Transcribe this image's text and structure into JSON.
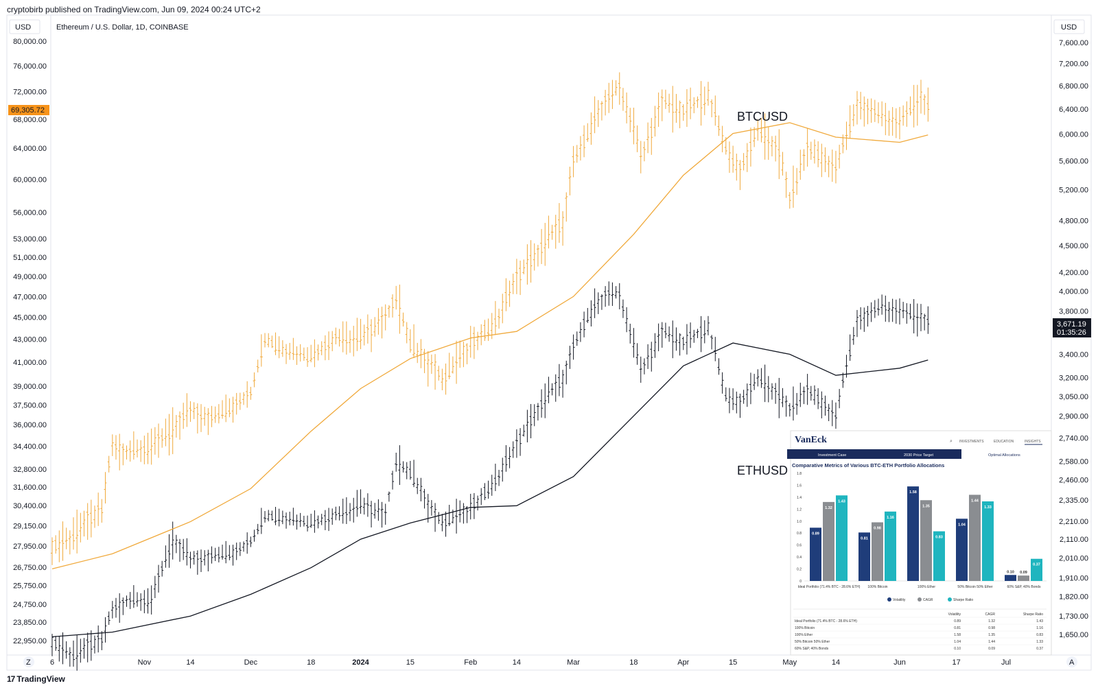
{
  "header": {
    "published": "cryptobirb published on TradingView.com, Jun 09, 2024 00:24 UTC+2"
  },
  "footer": {
    "logo_mark": "17",
    "logo_text": "TradingView"
  },
  "colors": {
    "btc": "#F0A93B",
    "eth": "#131722",
    "price_tag_btc": "#F7931A",
    "price_tag_eth": "#131722"
  },
  "chart_data": {
    "type": "line",
    "title": "Ethereum / U.S. Dollar, 1D, COINBASE",
    "currency_left": "USD",
    "currency_right": "USD",
    "left_axis": {
      "scale": "log",
      "ticks": [
        "80,000.00",
        "76,000.00",
        "72,000.00",
        "68,000.00",
        "64,000.00",
        "60,000.00",
        "56,000.00",
        "53,000.00",
        "51,000.00",
        "49,000.00",
        "47,000.00",
        "45,000.00",
        "43,000.00",
        "41,000.00",
        "39,000.00",
        "37,500.00",
        "36,000.00",
        "34,400.00",
        "32,800.00",
        "31,600.00",
        "30,400.00",
        "29,150.00",
        "27,950.00",
        "26,750.00",
        "25,750.00",
        "24,750.00",
        "23,850.00",
        "22,950.00"
      ],
      "tick_values": [
        80000,
        76000,
        72000,
        68000,
        64000,
        60000,
        56000,
        53000,
        51000,
        49000,
        47000,
        45000,
        43000,
        41000,
        39000,
        37500,
        36000,
        34400,
        32800,
        31600,
        30400,
        29150,
        27950,
        26750,
        25750,
        24750,
        23850,
        22950
      ]
    },
    "right_axis": {
      "scale": "log",
      "ticks": [
        "7,600.00",
        "7,200.00",
        "6,800.00",
        "6,400.00",
        "6,000.00",
        "5,600.00",
        "5,200.00",
        "4,800.00",
        "4,500.00",
        "4,200.00",
        "4,000.00",
        "3,800.00",
        "3,400.00",
        "3,200.00",
        "3,050.00",
        "2,900.00",
        "2,740.00",
        "2,580.00",
        "2,460.00",
        "2,335.00",
        "2,210.00",
        "2,110.00",
        "2,010.00",
        "1,910.00",
        "1,820.00",
        "1,730.00",
        "1,650.00"
      ],
      "tick_values": [
        7600,
        7200,
        6800,
        6400,
        6000,
        5600,
        5200,
        4800,
        4500,
        4200,
        4000,
        3800,
        3400,
        3200,
        3050,
        2900,
        2740,
        2580,
        2460,
        2335,
        2210,
        2110,
        2010,
        1910,
        1820,
        1730,
        1650
      ]
    },
    "x_ticks": [
      "6",
      "Nov",
      "14",
      "Dec",
      "18",
      "2024",
      "15",
      "Feb",
      "14",
      "Mar",
      "18",
      "Apr",
      "15",
      "May",
      "14",
      "Jun",
      "17",
      "Jul"
    ],
    "x_tick_dates": [
      "2023-10-06",
      "2023-11-01",
      "2023-11-14",
      "2023-12-01",
      "2023-12-18",
      "2024-01-01",
      "2024-01-15",
      "2024-02-01",
      "2024-02-14",
      "2024-03-01",
      "2024-03-18",
      "2024-04-01",
      "2024-04-15",
      "2024-05-01",
      "2024-05-14",
      "2024-06-01",
      "2024-06-17",
      "2024-07-01"
    ],
    "series": [
      {
        "name": "BTCUSD",
        "axis": "left",
        "last_price": "69,305.72",
        "points": [
          [
            "2023-10-06",
            27900
          ],
          [
            "2023-10-12",
            28500
          ],
          [
            "2023-10-16",
            29500
          ],
          [
            "2023-10-20",
            30000
          ],
          [
            "2023-10-23",
            34500
          ],
          [
            "2023-10-27",
            34000
          ],
          [
            "2023-11-03",
            34500
          ],
          [
            "2023-11-09",
            35500
          ],
          [
            "2023-11-14",
            37000
          ],
          [
            "2023-11-20",
            36500
          ],
          [
            "2023-11-27",
            37500
          ],
          [
            "2023-12-01",
            38500
          ],
          [
            "2023-12-05",
            43000
          ],
          [
            "2023-12-11",
            42000
          ],
          [
            "2023-12-18",
            41500
          ],
          [
            "2023-12-25",
            43200
          ],
          [
            "2024-01-01",
            43000
          ],
          [
            "2024-01-08",
            45000
          ],
          [
            "2024-01-11",
            47000
          ],
          [
            "2024-01-15",
            42500
          ],
          [
            "2024-01-22",
            40500
          ],
          [
            "2024-01-24",
            39500
          ],
          [
            "2024-02-01",
            42500
          ],
          [
            "2024-02-08",
            44500
          ],
          [
            "2024-02-14",
            49000
          ],
          [
            "2024-02-20",
            51500
          ],
          [
            "2024-02-27",
            55000
          ],
          [
            "2024-03-01",
            62000
          ],
          [
            "2024-03-05",
            66000
          ],
          [
            "2024-03-11",
            71500
          ],
          [
            "2024-03-14",
            72500
          ],
          [
            "2024-03-18",
            67000
          ],
          [
            "2024-03-20",
            62500
          ],
          [
            "2024-03-26",
            70500
          ],
          [
            "2024-04-01",
            69000
          ],
          [
            "2024-04-08",
            71500
          ],
          [
            "2024-04-13",
            64000
          ],
          [
            "2024-04-17",
            61000
          ],
          [
            "2024-04-22",
            66500
          ],
          [
            "2024-04-28",
            63500
          ],
          [
            "2024-05-01",
            57500
          ],
          [
            "2024-05-06",
            64000
          ],
          [
            "2024-05-14",
            61500
          ],
          [
            "2024-05-20",
            70000
          ],
          [
            "2024-05-27",
            68500
          ],
          [
            "2024-06-01",
            67500
          ],
          [
            "2024-06-07",
            71500
          ],
          [
            "2024-06-09",
            69300
          ]
        ],
        "ma_points": [
          [
            "2023-10-06",
            26650
          ],
          [
            "2023-10-23",
            27500
          ],
          [
            "2023-11-14",
            29400
          ],
          [
            "2023-12-01",
            31500
          ],
          [
            "2023-12-18",
            35500
          ],
          [
            "2024-01-01",
            38800
          ],
          [
            "2024-01-15",
            41300
          ],
          [
            "2024-02-01",
            43100
          ],
          [
            "2024-02-14",
            43700
          ],
          [
            "2024-03-01",
            47000
          ],
          [
            "2024-03-18",
            53500
          ],
          [
            "2024-04-01",
            60500
          ],
          [
            "2024-04-15",
            66000
          ],
          [
            "2024-05-01",
            67500
          ],
          [
            "2024-05-14",
            65500
          ],
          [
            "2024-06-01",
            64800
          ],
          [
            "2024-06-09",
            65800
          ]
        ]
      },
      {
        "name": "ETHUSD",
        "axis": "right",
        "last_price": "3,671.19",
        "countdown": "01:35:26",
        "points": [
          [
            "2023-10-06",
            1620
          ],
          [
            "2023-10-12",
            1560
          ],
          [
            "2023-10-16",
            1600
          ],
          [
            "2023-10-20",
            1620
          ],
          [
            "2023-10-23",
            1760
          ],
          [
            "2023-10-27",
            1800
          ],
          [
            "2023-11-03",
            1810
          ],
          [
            "2023-11-09",
            2100
          ],
          [
            "2023-11-14",
            2000
          ],
          [
            "2023-11-20",
            2020
          ],
          [
            "2023-11-27",
            2040
          ],
          [
            "2023-12-01",
            2100
          ],
          [
            "2023-12-05",
            2240
          ],
          [
            "2023-12-11",
            2230
          ],
          [
            "2023-12-18",
            2200
          ],
          [
            "2023-12-25",
            2250
          ],
          [
            "2024-01-01",
            2300
          ],
          [
            "2024-01-08",
            2250
          ],
          [
            "2024-01-11",
            2580
          ],
          [
            "2024-01-15",
            2500
          ],
          [
            "2024-01-22",
            2250
          ],
          [
            "2024-01-24",
            2200
          ],
          [
            "2024-02-01",
            2280
          ],
          [
            "2024-02-08",
            2450
          ],
          [
            "2024-02-14",
            2700
          ],
          [
            "2024-02-20",
            2950
          ],
          [
            "2024-02-27",
            3200
          ],
          [
            "2024-03-01",
            3450
          ],
          [
            "2024-03-05",
            3750
          ],
          [
            "2024-03-11",
            4000
          ],
          [
            "2024-03-14",
            3950
          ],
          [
            "2024-03-18",
            3500
          ],
          [
            "2024-03-20",
            3250
          ],
          [
            "2024-03-26",
            3600
          ],
          [
            "2024-04-01",
            3500
          ],
          [
            "2024-04-08",
            3650
          ],
          [
            "2024-04-13",
            3050
          ],
          [
            "2024-04-17",
            3000
          ],
          [
            "2024-04-22",
            3200
          ],
          [
            "2024-04-28",
            3050
          ],
          [
            "2024-05-01",
            2950
          ],
          [
            "2024-05-06",
            3100
          ],
          [
            "2024-05-14",
            2900
          ],
          [
            "2024-05-20",
            3700
          ],
          [
            "2024-05-27",
            3850
          ],
          [
            "2024-06-01",
            3800
          ],
          [
            "2024-06-07",
            3750
          ],
          [
            "2024-06-09",
            3671
          ]
        ],
        "ma_points": [
          [
            "2023-10-06",
            1640
          ],
          [
            "2023-10-23",
            1660
          ],
          [
            "2023-11-14",
            1730
          ],
          [
            "2023-12-01",
            1830
          ],
          [
            "2023-12-18",
            1960
          ],
          [
            "2024-01-01",
            2110
          ],
          [
            "2024-01-15",
            2200
          ],
          [
            "2024-02-01",
            2290
          ],
          [
            "2024-02-14",
            2300
          ],
          [
            "2024-03-01",
            2480
          ],
          [
            "2024-03-18",
            2900
          ],
          [
            "2024-04-01",
            3300
          ],
          [
            "2024-04-15",
            3500
          ],
          [
            "2024-05-01",
            3400
          ],
          [
            "2024-05-14",
            3220
          ],
          [
            "2024-06-01",
            3280
          ],
          [
            "2024-06-09",
            3350
          ]
        ]
      }
    ],
    "annotations": [
      "BTCUSD",
      "ETHUSD"
    ]
  },
  "inset": {
    "brand": "VanEck",
    "nav": [
      "INVESTMENTS",
      "EDUCATION",
      "INSIGHTS"
    ],
    "tabs": [
      "Investment Case",
      "2030 Price Target",
      "Optimal Allocations"
    ],
    "title": "Comparative Metrics of Various BTC-ETH Portfolio Allocations",
    "y_ticks": [
      "1.8",
      "1.6",
      "1.4",
      "1.2",
      "1.0",
      "0.8",
      "0.6",
      "0.4",
      "0.2",
      "0"
    ],
    "y_tick_values": [
      1.8,
      1.6,
      1.4,
      1.2,
      1.0,
      0.8,
      0.6,
      0.4,
      0.2,
      0
    ],
    "categories": [
      "Ideal Portfolio (71.4% BTC - 28.6% ETH)",
      "100% Bitcoin",
      "100% Ether",
      "50% Bitcoin 50% Ether",
      "60% S&P, 40% Bonds"
    ],
    "series": [
      {
        "name": "Volatility",
        "color": "#1f3d7a",
        "values": [
          0.89,
          0.81,
          1.58,
          1.04,
          0.1
        ]
      },
      {
        "name": "CAGR",
        "color": "#8a8d91",
        "values": [
          1.32,
          0.98,
          1.35,
          1.44,
          0.09
        ]
      },
      {
        "name": "Sharpe Ratio",
        "color": "#1fb5bf",
        "values": [
          1.43,
          1.16,
          0.83,
          1.33,
          0.37
        ]
      }
    ],
    "table": {
      "headers": [
        "Volatility",
        "CAGR",
        "Sharpe Ratio"
      ],
      "rows": [
        [
          "Ideal Portfolio (71.4% BTC - 28.6% ETH)",
          "0.89",
          "1.32",
          "1.43"
        ],
        [
          "100% Bitcoin",
          "0.81",
          "0.98",
          "1.16"
        ],
        [
          "100% Ether",
          "1.58",
          "1.35",
          "0.83"
        ],
        [
          "50% Bitcoin 50% Ether",
          "1.04",
          "1.44",
          "1.33"
        ],
        [
          "60% S&P, 40% Bonds",
          "0.10",
          "0.09",
          "0.37"
        ]
      ]
    }
  },
  "controls": {
    "left_btn": "Z",
    "right_btn": "A"
  }
}
